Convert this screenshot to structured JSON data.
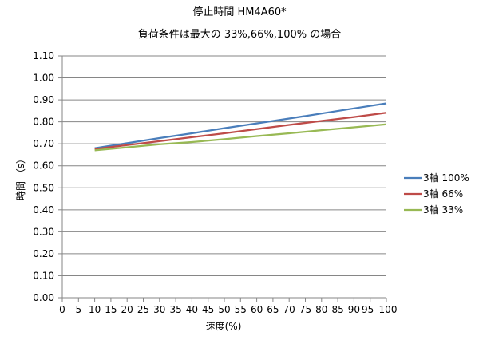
{
  "chart_data": {
    "type": "line",
    "title": "停止時間 HM4A60*",
    "subtitle": "負荷条件は最大の 33%,66%,100% の場合",
    "xlabel": "速度(%)",
    "ylabel": "時間 （s）",
    "categories": [
      0,
      5,
      10,
      15,
      20,
      25,
      30,
      35,
      40,
      45,
      50,
      55,
      60,
      65,
      70,
      75,
      80,
      85,
      90,
      95,
      100
    ],
    "y_ticks": [
      "0.00",
      "0.10",
      "0.20",
      "0.30",
      "0.40",
      "0.50",
      "0.60",
      "0.70",
      "0.80",
      "0.90",
      "1.00",
      "1.10"
    ],
    "ylim": [
      0,
      1.1
    ],
    "grid": "horizontal",
    "legend_position": "right",
    "series": [
      {
        "name": "3軸 100%",
        "color": "#4a7ebb",
        "x": [
          10,
          20,
          30,
          40,
          50,
          60,
          70,
          80,
          90,
          100
        ],
        "values": [
          0.68,
          0.703,
          0.726,
          0.748,
          0.771,
          0.793,
          0.815,
          0.838,
          0.861,
          0.884
        ]
      },
      {
        "name": "3軸 66%",
        "color": "#be4b48",
        "x": [
          10,
          20,
          30,
          40,
          50,
          60,
          70,
          80,
          90,
          100
        ],
        "values": [
          0.676,
          0.694,
          0.712,
          0.73,
          0.748,
          0.767,
          0.786,
          0.804,
          0.822,
          0.841
        ]
      },
      {
        "name": "3軸 33%",
        "color": "#98b954",
        "x": [
          10,
          20,
          30,
          40,
          50,
          60,
          70,
          80,
          90,
          100
        ],
        "values": [
          0.67,
          0.684,
          0.698,
          0.708,
          0.721,
          0.735,
          0.748,
          0.762,
          0.775,
          0.789
        ]
      }
    ]
  }
}
